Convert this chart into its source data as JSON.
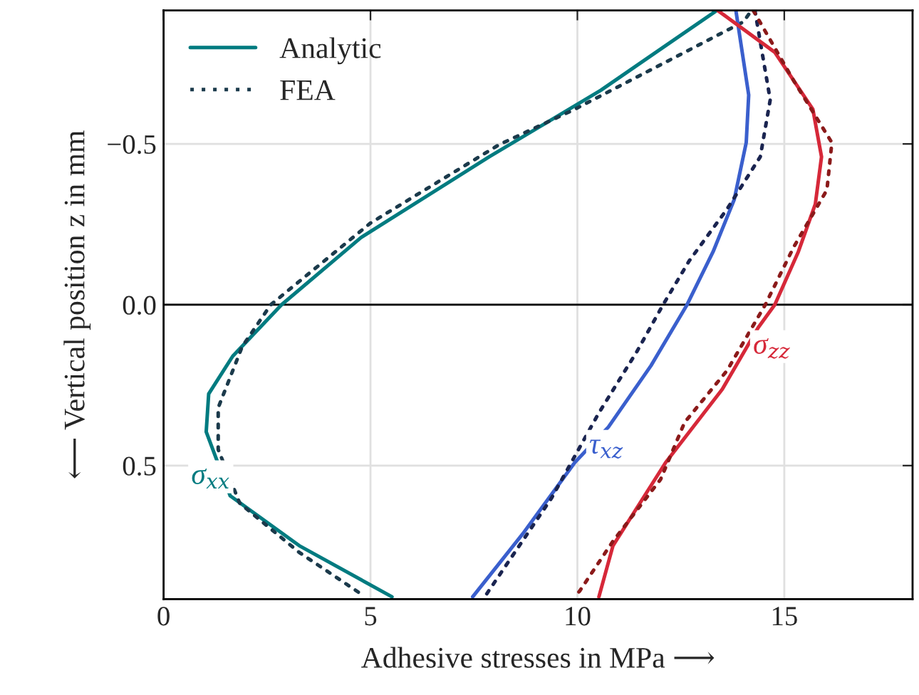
{
  "chart_data": {
    "type": "line",
    "xlabel": "Adhesive stresses in MPa ⟶",
    "ylabel": "⟵ Vertical position z in mm",
    "xlim": [
      0,
      18.1
    ],
    "xticks": [
      0,
      5,
      10,
      15
    ],
    "ylim": [
      0.915,
      -0.915
    ],
    "yticks": [
      {
        "value": -0.5,
        "label": "−0.5"
      },
      {
        "value": 0,
        "label": "0.0"
      },
      {
        "value": 0.5,
        "label": "0.5"
      }
    ],
    "grid": true,
    "legend": "top left",
    "ref_lines": [
      {
        "axis": "y",
        "value": 0,
        "color": "#000000"
      }
    ],
    "series": [
      {
        "name": "Analytic",
        "color": "#007b80",
        "line_style": "solid",
        "x": [
          13.37,
          11.9,
          10.57,
          7.87,
          4.77,
          2.85,
          1.67,
          1.09,
          1.03,
          1.61,
          3.28,
          5.52
        ],
        "values": [
          -0.915,
          -0.785,
          -0.667,
          -0.46,
          -0.209,
          0.0,
          0.16,
          0.277,
          0.395,
          0.594,
          0.749,
          0.908
        ]
      },
      {
        "name": "FEA",
        "color": "#1b3a4b",
        "line_style": "dotted",
        "x": [
          14.14,
          14.02,
          9.94,
          8.1,
          5.0,
          2.59,
          1.9,
          1.32,
          1.32,
          1.84,
          3.28,
          4.83
        ],
        "values": [
          -0.903,
          -0.88,
          -0.608,
          -0.497,
          -0.254,
          0.0,
          0.13,
          0.32,
          0.45,
          0.617,
          0.77,
          0.904
        ]
      },
      {
        "color": "#3a5fcd",
        "line_style": "solid",
        "x": [
          13.83,
          14.14,
          14.08,
          13.79,
          13.28,
          12.65,
          11.78,
          10.75,
          9.94,
          8.68,
          7.47
        ],
        "values": [
          -0.915,
          -0.652,
          -0.504,
          -0.327,
          -0.165,
          0.0,
          0.189,
          0.38,
          0.49,
          0.712,
          0.908
        ]
      },
      {
        "color": "#1a2450",
        "line_style": "dotted",
        "x": [
          14.29,
          14.66,
          14.42,
          13.62,
          12.7,
          12.07,
          11.44,
          10.52,
          9.37,
          7.76
        ],
        "values": [
          -0.915,
          -0.637,
          -0.46,
          -0.298,
          -0.136,
          0.0,
          0.145,
          0.336,
          0.602,
          0.908
        ]
      },
      {
        "color": "#d62839",
        "line_style": "solid",
        "x": [
          13.39,
          14.77,
          15.69,
          15.9,
          15.75,
          15.34,
          14.77,
          14.37,
          13.5,
          12.13,
          10.86,
          10.52
        ],
        "values": [
          -0.915,
          -0.785,
          -0.608,
          -0.46,
          -0.313,
          -0.165,
          0.0,
          0.071,
          0.263,
          0.491,
          0.749,
          0.908
        ]
      },
      {
        "color": "#8b1a1a",
        "line_style": "dotted",
        "x": [
          14.25,
          15.23,
          16.15,
          16.03,
          15.23,
          14.54,
          13.62,
          12.59,
          12.01,
          10.86,
          10.06,
          9.94
        ],
        "values": [
          -0.915,
          -0.696,
          -0.504,
          -0.357,
          -0.18,
          0.0,
          0.204,
          0.366,
          0.543,
          0.735,
          0.889,
          0.908
        ]
      }
    ],
    "annotations": [
      {
        "text": "σ$_{xx}$",
        "x": 1.14,
        "y": 0.535
      },
      {
        "text": "τ$_{xz}$",
        "x": 10.7,
        "y": 0.44
      },
      {
        "text": "σ$_{zz}$",
        "x": 14.7,
        "y": 0.13
      }
    ]
  }
}
